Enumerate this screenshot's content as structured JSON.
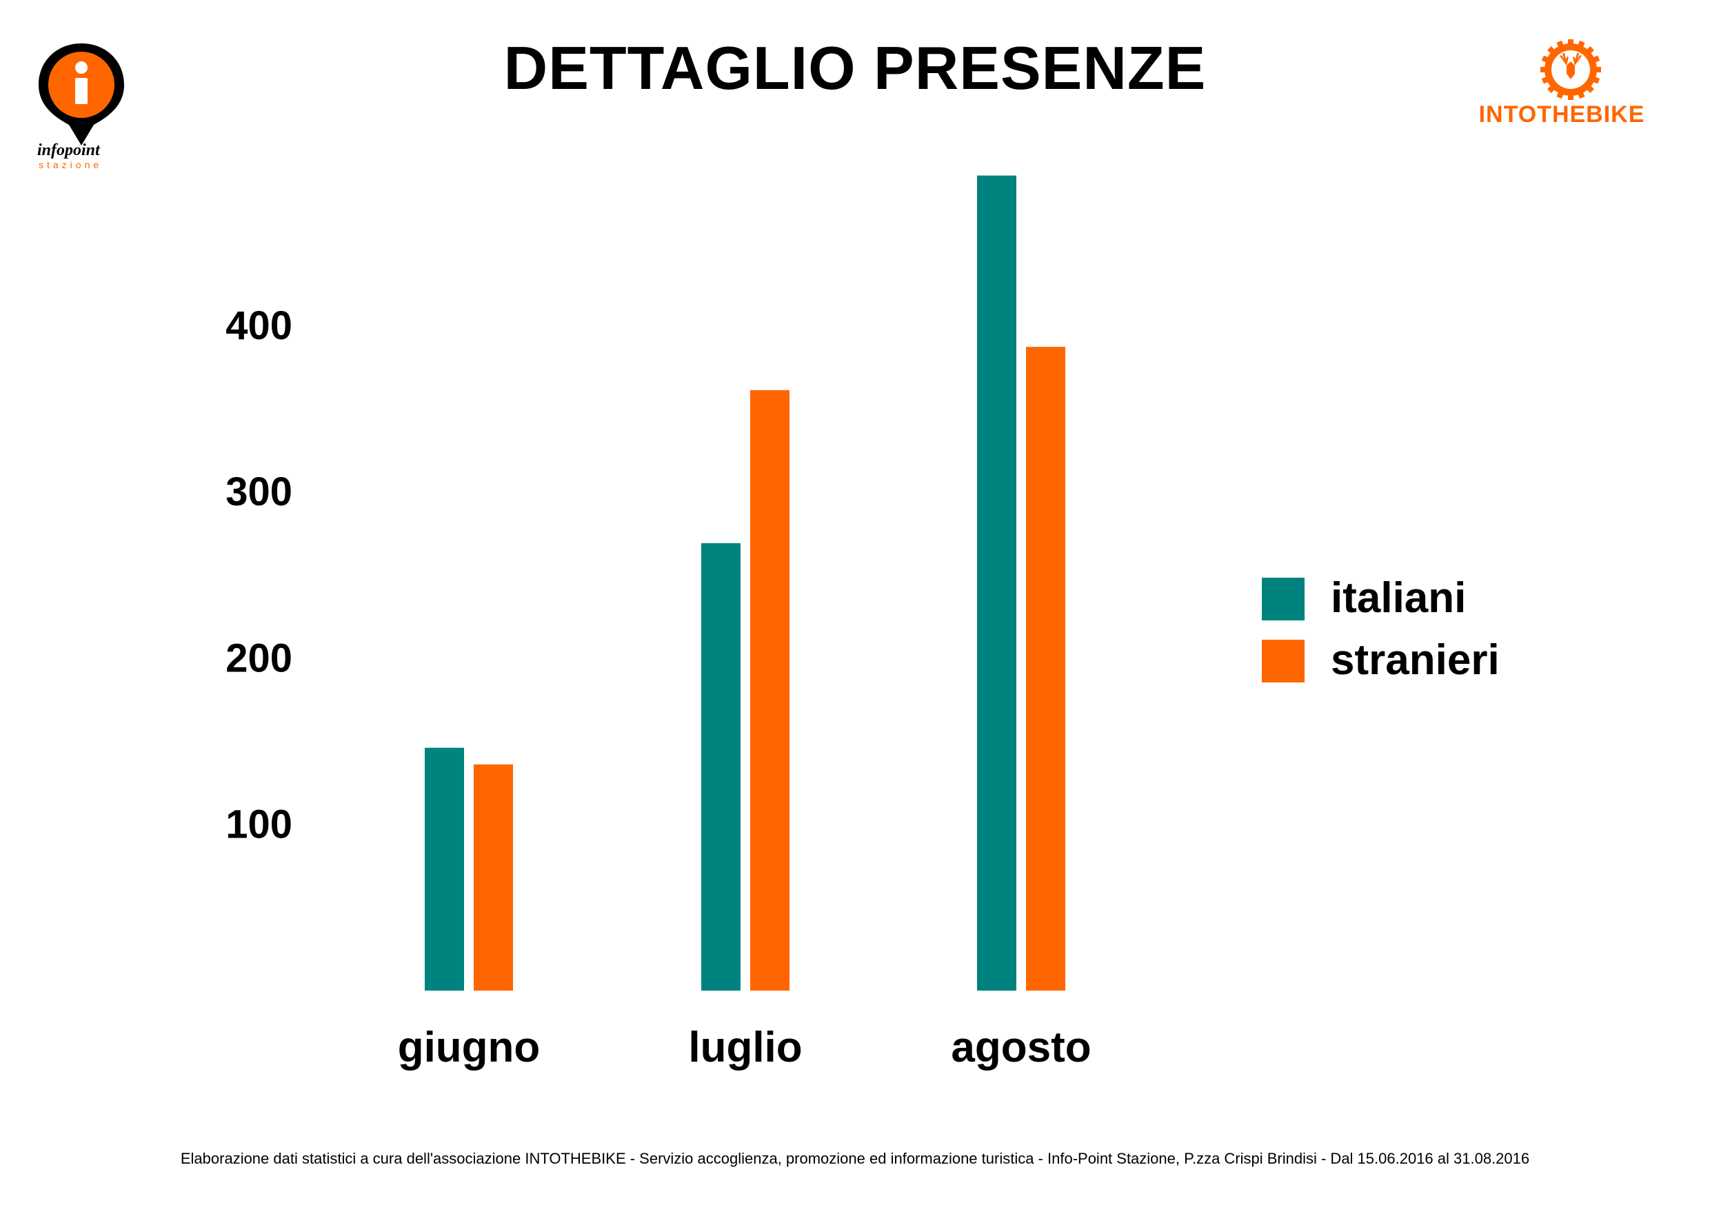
{
  "title": "DETTAGLIO PRESENZE",
  "footer": "Elaborazione dati statistici a cura dell'associazione INTOTHEBIKE - Servizio accoglienza, promozione ed informazione turistica - Info-Point Stazione, P.zza Crispi Brindisi - Dal 15.06.2016 al 31.08.2016",
  "logo_left": {
    "icon": "infopoint-pin-icon",
    "line1": "infopoint",
    "line2": "stazione",
    "color": "#FF6600"
  },
  "logo_right": {
    "icon": "deer-gear-icon",
    "text": "INTOTHEBIKE",
    "color": "#FF6600"
  },
  "chart_data": {
    "type": "bar",
    "categories": [
      "giugno",
      "luglio",
      "agosto"
    ],
    "series": [
      {
        "name": "italiani",
        "color": "#00827F",
        "values": [
          146,
          269,
          490
        ]
      },
      {
        "name": "stranieri",
        "color": "#FF6600",
        "values": [
          136,
          361,
          387
        ]
      }
    ],
    "yticks": [
      100,
      200,
      300,
      400
    ],
    "ylim": [
      0,
      500
    ],
    "legend": "right",
    "grid": false
  }
}
